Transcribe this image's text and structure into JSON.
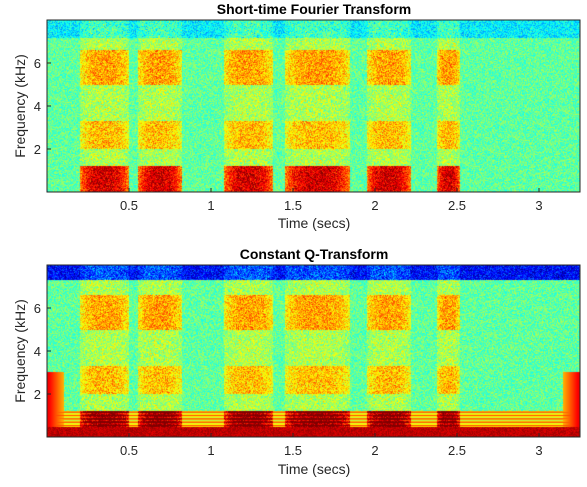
{
  "chart_data": [
    {
      "type": "heatmap",
      "title": "Short-time Fourier Transform",
      "xlabel": "Time (secs)",
      "ylabel": "Frequency (kHz)",
      "xlim": [
        0,
        3.25
      ],
      "ylim": [
        0,
        8
      ],
      "xticks": [
        0.5,
        1,
        1.5,
        2,
        2.5,
        3
      ],
      "xtick_labels": [
        "0.5",
        "1",
        "1.5",
        "2",
        "2.5",
        "3"
      ],
      "yticks": [
        2,
        4,
        6
      ],
      "ytick_labels": [
        "2",
        "4",
        "6"
      ],
      "colormap": "jet",
      "speech_segments": [
        {
          "start": 0.2,
          "end": 0.5
        },
        {
          "start": 0.55,
          "end": 0.82
        },
        {
          "start": 1.08,
          "end": 1.38
        },
        {
          "start": 1.45,
          "end": 1.85
        },
        {
          "start": 1.95,
          "end": 2.22
        },
        {
          "start": 2.38,
          "end": 2.52
        }
      ]
    },
    {
      "type": "heatmap",
      "title": "Constant Q-Transform",
      "xlabel": "Time (secs)",
      "ylabel": "Frequency (kHz)",
      "xlim": [
        0,
        3.25
      ],
      "ylim": [
        0,
        8
      ],
      "xticks": [
        0.5,
        1,
        1.5,
        2,
        2.5,
        3
      ],
      "xtick_labels": [
        "0.5",
        "1",
        "1.5",
        "2",
        "2.5",
        "3"
      ],
      "yticks": [
        2,
        4,
        6
      ],
      "ytick_labels": [
        "2",
        "4",
        "6"
      ],
      "colormap": "jet",
      "speech_segments": [
        {
          "start": 0.2,
          "end": 0.5
        },
        {
          "start": 0.55,
          "end": 0.82
        },
        {
          "start": 1.08,
          "end": 1.38
        },
        {
          "start": 1.45,
          "end": 1.85
        },
        {
          "start": 1.95,
          "end": 2.22
        },
        {
          "start": 2.38,
          "end": 2.52
        }
      ]
    }
  ]
}
